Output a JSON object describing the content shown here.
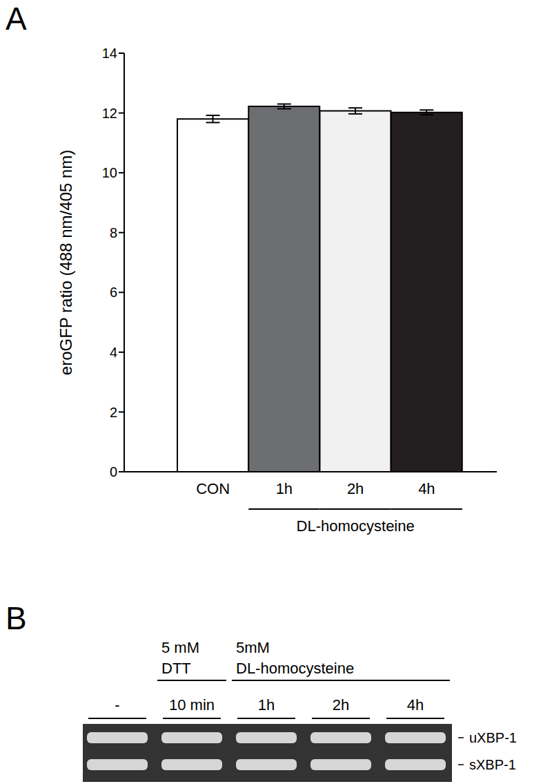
{
  "chart_data": {
    "type": "bar",
    "panel": "A",
    "categories": [
      "CON",
      "1h",
      "2h",
      "4h"
    ],
    "values": [
      11.8,
      12.22,
      12.07,
      12.02
    ],
    "errors": [
      0.12,
      0.08,
      0.1,
      0.08
    ],
    "colors": [
      "#ffffff",
      "#6d6e71",
      "#f1f1f2",
      "#231f20"
    ],
    "y_label": "eroGFP ratio (488 nm/405 nm)",
    "group_label": {
      "text": "DL-homocysteine",
      "categories": [
        "1h",
        "2h",
        "4h"
      ]
    },
    "ylim": [
      0,
      14
    ],
    "yticks": [
      0,
      2,
      4,
      6,
      8,
      10,
      12,
      14
    ],
    "grid": false
  },
  "gel": {
    "panel": "B",
    "treatments": [
      {
        "text": [
          "5 mM",
          "DTT"
        ],
        "lanes": [
          1
        ]
      },
      {
        "text": [
          "5mM",
          "DL-homocysteine"
        ],
        "lanes": [
          2,
          3,
          4
        ]
      }
    ],
    "lanes": [
      "-",
      "10 min",
      "1h",
      "2h",
      "4h"
    ],
    "bands": [
      "uXBP-1",
      "sXBP-1"
    ]
  }
}
